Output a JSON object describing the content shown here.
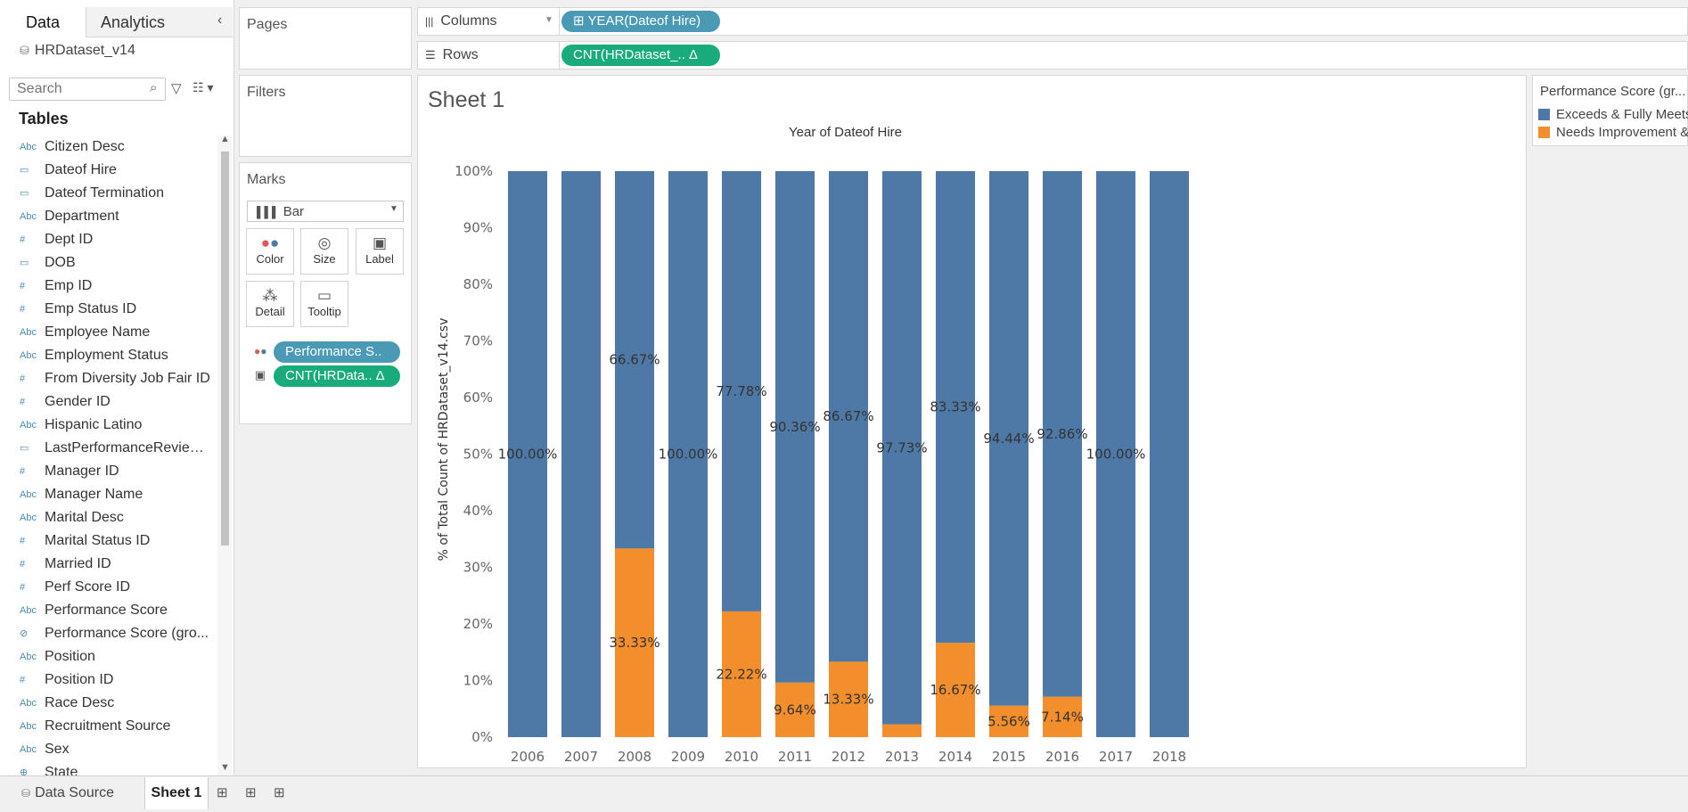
{
  "data_pane": {
    "tabs": {
      "data": "Data",
      "analytics": "Analytics"
    },
    "collapse_icon": "‹",
    "datasource": "HRDataset_v14",
    "search_placeholder": "Search",
    "tables_title": "Tables",
    "fields": [
      {
        "type": "Abc",
        "name": "Citizen Desc"
      },
      {
        "type": "▭",
        "name": "Dateof Hire"
      },
      {
        "type": "▭",
        "name": "Dateof Termination"
      },
      {
        "type": "Abc",
        "name": "Department"
      },
      {
        "type": "#",
        "name": "Dept ID"
      },
      {
        "type": "▭",
        "name": "DOB"
      },
      {
        "type": "#",
        "name": "Emp ID"
      },
      {
        "type": "#",
        "name": "Emp Status ID"
      },
      {
        "type": "Abc",
        "name": "Employee Name"
      },
      {
        "type": "Abc",
        "name": "Employment Status"
      },
      {
        "type": "#",
        "name": "From Diversity Job Fair ID"
      },
      {
        "type": "#",
        "name": "Gender ID"
      },
      {
        "type": "Abc",
        "name": "Hispanic Latino"
      },
      {
        "type": "▭",
        "name": "LastPerformanceReview ..."
      },
      {
        "type": "#",
        "name": "Manager ID"
      },
      {
        "type": "Abc",
        "name": "Manager Name"
      },
      {
        "type": "Abc",
        "name": "Marital Desc"
      },
      {
        "type": "#",
        "name": "Marital Status ID"
      },
      {
        "type": "#",
        "name": "Married ID"
      },
      {
        "type": "#",
        "name": "Perf Score ID"
      },
      {
        "type": "Abc",
        "name": "Performance Score"
      },
      {
        "type": "⊘",
        "name": "Performance Score (gro..."
      },
      {
        "type": "Abc",
        "name": "Position"
      },
      {
        "type": "#",
        "name": "Position ID"
      },
      {
        "type": "Abc",
        "name": "Race Desc"
      },
      {
        "type": "Abc",
        "name": "Recruitment Source"
      },
      {
        "type": "Abc",
        "name": "Sex"
      },
      {
        "type": "⊕",
        "name": "State"
      }
    ]
  },
  "cards": {
    "pages": "Pages",
    "filters": "Filters",
    "marks": "Marks",
    "mark_type": "Bar",
    "mark_buttons": {
      "color": "Color",
      "size": "Size",
      "label": "Label",
      "detail": "Detail",
      "tooltip": "Tooltip"
    },
    "mark_pills": {
      "color_pill": "Performance S..",
      "label_pill": "CNT(HRData.. Δ"
    }
  },
  "shelves": {
    "columns_label": "Columns",
    "columns_pill": "⊞ YEAR(Dateof Hire)",
    "rows_label": "Rows",
    "rows_pill": "CNT(HRDataset_..   Δ"
  },
  "sheet": {
    "title": "Sheet 1",
    "column_header": "Year of Dateof Hire"
  },
  "legend": {
    "title": "Performance Score (gr...",
    "items": [
      "Exceeds & Fully Meets",
      "Needs Improvement &"
    ],
    "colors": [
      "#4e79a7",
      "#f28e2b"
    ]
  },
  "chart_data": {
    "type": "bar",
    "stacked": true,
    "categories": [
      "2006",
      "2007",
      "2008",
      "2009",
      "2010",
      "2011",
      "2012",
      "2013",
      "2014",
      "2015",
      "2016",
      "2017",
      "2018"
    ],
    "series": [
      {
        "name": "Exceeds & Fully Meets",
        "color": "#4e79a7",
        "values": [
          100,
          100,
          66.67,
          100,
          77.78,
          90.36,
          86.67,
          97.73,
          83.33,
          94.44,
          92.86,
          100,
          100
        ],
        "labels": [
          "100.00%",
          "",
          "66.67%",
          "100.00%",
          "77.78%",
          "90.36%",
          "86.67%",
          "97.73%",
          "83.33%",
          "94.44%",
          "92.86%",
          "100.00%",
          ""
        ]
      },
      {
        "name": "Needs Improvement &",
        "color": "#f28e2b",
        "values": [
          0,
          0,
          33.33,
          0,
          22.22,
          9.64,
          13.33,
          2.27,
          16.67,
          5.56,
          7.14,
          0,
          0
        ],
        "labels": [
          "",
          "",
          "33.33%",
          "",
          "22.22%",
          "9.64%",
          "13.33%",
          "",
          "16.67%",
          "5.56%",
          "7.14%",
          "",
          ""
        ]
      }
    ],
    "ylabel": "% of Total Count of HRDataset_v14.csv",
    "xlabel": "Year of Dateof Hire",
    "ylim": [
      0,
      100
    ],
    "yticks": [
      "0%",
      "10%",
      "20%",
      "30%",
      "40%",
      "50%",
      "60%",
      "70%",
      "80%",
      "90%",
      "100%"
    ]
  },
  "bottom_bar": {
    "datasource_tab": "Data Source",
    "sheet_tab": "Sheet 1"
  }
}
